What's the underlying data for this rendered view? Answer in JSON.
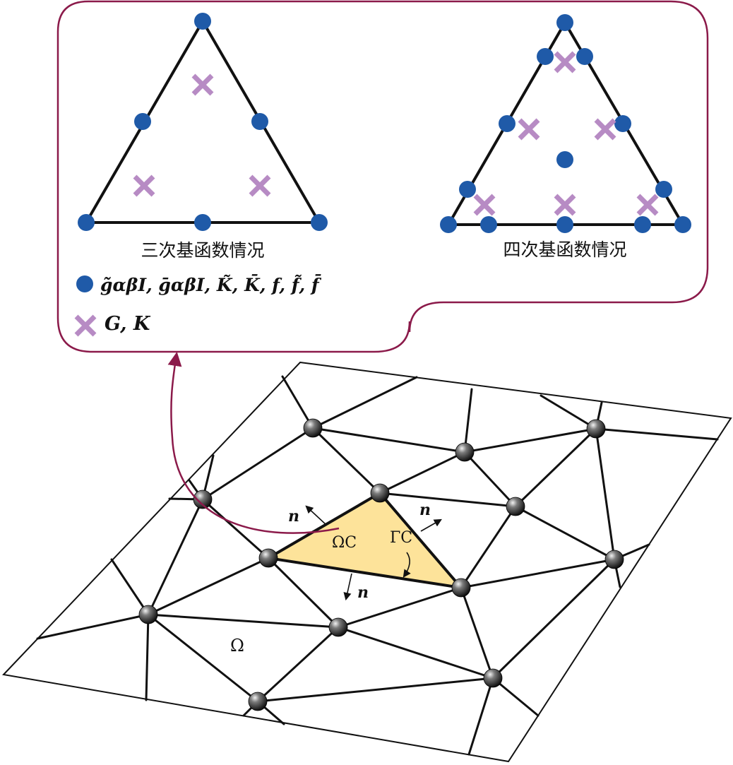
{
  "colors": {
    "frame": "#8b1a4a",
    "node_dot": "#1f5aa8",
    "quad_cross": "#b78bc4",
    "cell_fill": "#fde39a",
    "mesh_line": "#111111",
    "mesh_node": "#2a2a2a"
  },
  "inset": {
    "cubic_caption": "三次基函数情况",
    "quartic_caption": "四次基函数情况",
    "legend": {
      "dot_marker": "blue-dot-icon",
      "dot_label": "g̃αβI, ḡαβI, K̃, K̄, f, f̃, f̄",
      "cross_marker": "cross-icon",
      "cross_label": "G, K"
    }
  },
  "mesh": {
    "domain_label": "Ω",
    "cell_label": "ΩC",
    "boundary_label": "ΓC",
    "normal_label": "n"
  }
}
